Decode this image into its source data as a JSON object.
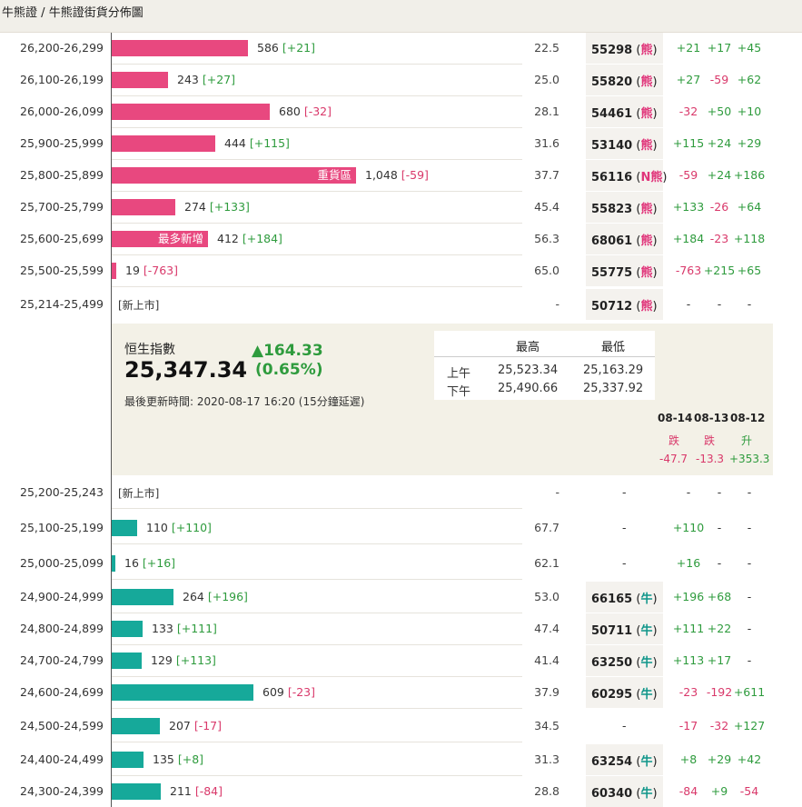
{
  "breadcrumb": {
    "parent": "牛熊證",
    "separator": "/",
    "current": "牛熊證街貨分佈圖"
  },
  "panel": {
    "index_name": "恒生指數",
    "index_value": "25,347.34",
    "change": "▲164.33",
    "change_pct": "(0.65%)",
    "update_time": "最後更新時間: 2020-08-17 16:20 (15分鐘延遲)",
    "table_headers": [
      "最高",
      "最低"
    ],
    "table_rows": [
      {
        "label": "上午",
        "high": "25,523.34",
        "low": "25,163.29"
      },
      {
        "label": "下午",
        "high": "25,490.66",
        "low": "25,337.92"
      }
    ],
    "trend_dates": [
      "08-14",
      "08-13",
      "08-12"
    ],
    "trend_words": [
      "跌",
      "跌",
      "升"
    ],
    "trend_values": [
      "-47.7",
      "-13.3",
      "+353.3"
    ]
  },
  "labels": {
    "heavy": "重貨區",
    "most_new": "最多新增",
    "new_listing": "[新上市]",
    "dash": "-"
  },
  "colors": {
    "bear": "#e8487f",
    "bull": "#16a99a",
    "up": "#2e9b3d",
    "down": "#d9386a"
  },
  "chart_data": {
    "type": "bar",
    "orientation": "horizontal",
    "bear_rows": [
      {
        "range": "26,200-26,299",
        "value": 586,
        "value_text": "586",
        "change": "[+21]",
        "pct": "22.5",
        "code": "55298",
        "tag": "熊",
        "d1": "+21",
        "d2": "+17",
        "d3": "+45"
      },
      {
        "range": "26,100-26,199",
        "value": 243,
        "value_text": "243",
        "change": "[+27]",
        "pct": "25.0",
        "code": "55820",
        "tag": "熊",
        "d1": "+27",
        "d2": "-59",
        "d3": "+62"
      },
      {
        "range": "26,000-26,099",
        "value": 680,
        "value_text": "680",
        "change": "[-32]",
        "pct": "28.1",
        "code": "54461",
        "tag": "熊",
        "d1": "-32",
        "d2": "+50",
        "d3": "+10"
      },
      {
        "range": "25,900-25,999",
        "value": 444,
        "value_text": "444",
        "change": "[+115]",
        "pct": "31.6",
        "code": "53140",
        "tag": "熊",
        "d1": "+115",
        "d2": "+24",
        "d3": "+29"
      },
      {
        "range": "25,800-25,899",
        "value": 1048,
        "value_text": "1,048",
        "change": "[-59]",
        "pct": "37.7",
        "code": "56116",
        "tag": "N熊",
        "d1": "-59",
        "d2": "+24",
        "d3": "+186",
        "inbar": "heavy"
      },
      {
        "range": "25,700-25,799",
        "value": 274,
        "value_text": "274",
        "change": "[+133]",
        "pct": "45.4",
        "code": "55823",
        "tag": "熊",
        "d1": "+133",
        "d2": "-26",
        "d3": "+64"
      },
      {
        "range": "25,600-25,699",
        "value": 412,
        "value_text": "412",
        "change": "[+184]",
        "pct": "56.3",
        "code": "68061",
        "tag": "熊",
        "d1": "+184",
        "d2": "-23",
        "d3": "+118",
        "inbar": "most_new"
      },
      {
        "range": "25,500-25,599",
        "value": 19,
        "value_text": "19",
        "change": "[-763]",
        "pct": "65.0",
        "code": "55775",
        "tag": "熊",
        "d1": "-763",
        "d2": "+215",
        "d3": "+65"
      },
      {
        "range": "25,214-25,499",
        "value": null,
        "new": true,
        "pct": "-",
        "code": "50712",
        "tag": "熊",
        "d1": "-",
        "d2": "-",
        "d3": "-"
      }
    ],
    "bull_rows": [
      {
        "range": "25,200-25,243",
        "value": null,
        "new": true,
        "pct": "-",
        "code": null,
        "d1": "-",
        "d2": "-",
        "d3": "-"
      },
      {
        "range": "25,100-25,199",
        "value": 110,
        "value_text": "110",
        "change": "[+110]",
        "pct": "67.7",
        "code": null,
        "d1": "+110",
        "d2": "-",
        "d3": "-"
      },
      {
        "range": "25,000-25,099",
        "value": 16,
        "value_text": "16",
        "change": "[+16]",
        "pct": "62.1",
        "code": null,
        "d1": "+16",
        "d2": "-",
        "d3": "-"
      },
      {
        "range": "24,900-24,999",
        "value": 264,
        "value_text": "264",
        "change": "[+196]",
        "pct": "53.0",
        "code": "66165",
        "tag": "牛",
        "d1": "+196",
        "d2": "+68",
        "d3": "-"
      },
      {
        "range": "24,800-24,899",
        "value": 133,
        "value_text": "133",
        "change": "[+111]",
        "pct": "47.4",
        "code": "50711",
        "tag": "牛",
        "d1": "+111",
        "d2": "+22",
        "d3": "-"
      },
      {
        "range": "24,700-24,799",
        "value": 129,
        "value_text": "129",
        "change": "[+113]",
        "pct": "41.4",
        "code": "63250",
        "tag": "牛",
        "d1": "+113",
        "d2": "+17",
        "d3": "-"
      },
      {
        "range": "24,600-24,699",
        "value": 609,
        "value_text": "609",
        "change": "[-23]",
        "pct": "37.9",
        "code": "60295",
        "tag": "牛",
        "d1": "-23",
        "d2": "-192",
        "d3": "+611"
      },
      {
        "range": "24,500-24,599",
        "value": 207,
        "value_text": "207",
        "change": "[-17]",
        "pct": "34.5",
        "code": null,
        "d1": "-17",
        "d2": "-32",
        "d3": "+127"
      },
      {
        "range": "24,400-24,499",
        "value": 135,
        "value_text": "135",
        "change": "[+8]",
        "pct": "31.3",
        "code": "63254",
        "tag": "牛",
        "d1": "+8",
        "d2": "+29",
        "d3": "+42"
      },
      {
        "range": "24,300-24,399",
        "value": 211,
        "value_text": "211",
        "change": "[-84]",
        "pct": "28.8",
        "code": "60340",
        "tag": "牛",
        "d1": "-84",
        "d2": "+9",
        "d3": "-54"
      }
    ]
  }
}
